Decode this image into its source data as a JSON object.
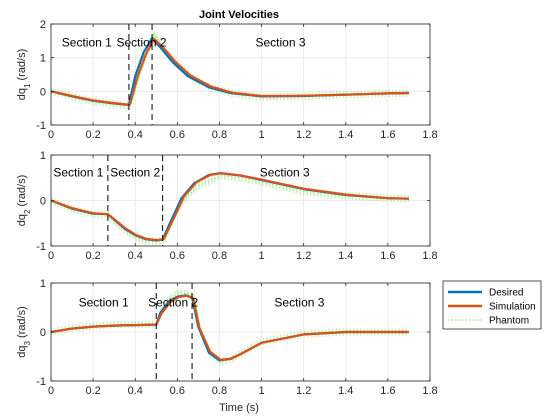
{
  "figure": {
    "title": "Joint Velocities",
    "xlabel": "Time (s)"
  },
  "legend": {
    "entries": [
      {
        "name": "Desired",
        "color": "#0072bd",
        "style": "solid"
      },
      {
        "name": "Simulation",
        "color": "#d95319",
        "style": "solid"
      },
      {
        "name": "Phantom",
        "color": "#77dd55",
        "style": "dotted"
      }
    ]
  },
  "chart_data": [
    {
      "type": "line",
      "ylabel": {
        "base": "dq",
        "sub": "1",
        "unit": " (rad/s)"
      },
      "xlim": [
        0,
        1.8
      ],
      "ylim": [
        -1,
        2
      ],
      "xticks": [
        "0",
        "0.2",
        "0.4",
        "0.6",
        "0.8",
        "1",
        "1.2",
        "1.4",
        "1.6",
        "1.8"
      ],
      "yticks": [
        "-1",
        "0",
        "1",
        "2"
      ],
      "grid": true,
      "section_lines": [
        0.37,
        0.48
      ],
      "sections": [
        {
          "label": "Section 1",
          "x": 0.17,
          "y": 1.45
        },
        {
          "label": "Section 2",
          "x": 0.43,
          "y": 1.45
        },
        {
          "label": "Section 3",
          "x": 1.09,
          "y": 1.45
        }
      ],
      "series": [
        {
          "name": "Desired",
          "x": [
            0,
            0.1,
            0.2,
            0.3,
            0.36,
            0.37,
            0.4,
            0.44,
            0.48,
            0.52,
            0.58,
            0.65,
            0.75,
            0.85,
            1.0,
            1.2,
            1.4,
            1.6,
            1.7
          ],
          "values": [
            0,
            -0.15,
            -0.28,
            -0.36,
            -0.4,
            -0.4,
            0.45,
            1.15,
            1.58,
            1.3,
            0.85,
            0.45,
            0.12,
            -0.05,
            -0.15,
            -0.14,
            -0.1,
            -0.06,
            -0.05
          ]
        },
        {
          "name": "Simulation",
          "x": [
            0,
            0.1,
            0.2,
            0.3,
            0.36,
            0.375,
            0.41,
            0.45,
            0.49,
            0.53,
            0.59,
            0.66,
            0.76,
            0.86,
            1.0,
            1.2,
            1.4,
            1.6,
            1.7
          ],
          "values": [
            0,
            -0.14,
            -0.27,
            -0.35,
            -0.39,
            -0.38,
            0.42,
            1.1,
            1.55,
            1.32,
            0.88,
            0.48,
            0.14,
            -0.04,
            -0.14,
            -0.13,
            -0.1,
            -0.06,
            -0.05
          ]
        },
        {
          "name": "Phantom",
          "x": [
            0,
            0.1,
            0.2,
            0.3,
            0.36,
            0.38,
            0.42,
            0.46,
            0.49,
            0.53,
            0.59,
            0.66,
            0.76,
            0.86,
            1.0,
            1.2,
            1.4,
            1.6,
            1.7
          ],
          "values": [
            0,
            -0.16,
            -0.3,
            -0.37,
            -0.42,
            -0.35,
            0.5,
            1.2,
            1.7,
            1.3,
            0.85,
            0.45,
            0.1,
            -0.06,
            -0.17,
            -0.15,
            -0.1,
            -0.07,
            -0.05
          ]
        }
      ]
    },
    {
      "type": "line",
      "ylabel": {
        "base": "dq",
        "sub": "2",
        "unit": " (rad/s)"
      },
      "xlim": [
        0,
        1.8
      ],
      "ylim": [
        -1,
        1
      ],
      "xticks": [
        "0",
        "0.2",
        "0.4",
        "0.6",
        "0.8",
        "1",
        "1.2",
        "1.4",
        "1.6",
        "1.8"
      ],
      "yticks": [
        "-1",
        "0",
        "1"
      ],
      "grid": true,
      "section_lines": [
        0.27,
        0.53
      ],
      "sections": [
        {
          "label": "Section 1",
          "x": 0.13,
          "y": 0.62
        },
        {
          "label": "Section 2",
          "x": 0.4,
          "y": 0.62
        },
        {
          "label": "Section 3",
          "x": 1.11,
          "y": 0.62
        }
      ],
      "series": [
        {
          "name": "Desired",
          "x": [
            0,
            0.1,
            0.2,
            0.27,
            0.3,
            0.35,
            0.4,
            0.45,
            0.5,
            0.53,
            0.57,
            0.62,
            0.68,
            0.75,
            0.8,
            0.9,
            1.0,
            1.2,
            1.4,
            1.6,
            1.7
          ],
          "values": [
            0,
            -0.18,
            -0.29,
            -0.3,
            -0.42,
            -0.62,
            -0.76,
            -0.85,
            -0.88,
            -0.86,
            -0.45,
            0.05,
            0.38,
            0.56,
            0.6,
            0.55,
            0.45,
            0.25,
            0.12,
            0.05,
            0.04
          ]
        },
        {
          "name": "Simulation",
          "x": [
            0,
            0.1,
            0.2,
            0.27,
            0.3,
            0.35,
            0.4,
            0.45,
            0.5,
            0.535,
            0.58,
            0.63,
            0.69,
            0.76,
            0.81,
            0.9,
            1.0,
            1.2,
            1.4,
            1.6,
            1.7
          ],
          "values": [
            0,
            -0.17,
            -0.28,
            -0.3,
            -0.41,
            -0.6,
            -0.75,
            -0.84,
            -0.87,
            -0.85,
            -0.42,
            0.08,
            0.4,
            0.57,
            0.6,
            0.55,
            0.46,
            0.26,
            0.13,
            0.05,
            0.04
          ]
        },
        {
          "name": "Phantom",
          "x": [
            0,
            0.1,
            0.2,
            0.27,
            0.3,
            0.35,
            0.4,
            0.45,
            0.5,
            0.54,
            0.58,
            0.63,
            0.69,
            0.76,
            0.81,
            0.9,
            1.0,
            1.2,
            1.4,
            1.6,
            1.7
          ],
          "values": [
            0,
            -0.2,
            -0.3,
            -0.32,
            -0.45,
            -0.65,
            -0.8,
            -0.9,
            -0.9,
            -0.85,
            -0.4,
            0.0,
            0.3,
            0.45,
            0.55,
            0.5,
            0.4,
            0.2,
            0.1,
            0.05,
            0.04
          ]
        }
      ]
    },
    {
      "type": "line",
      "ylabel": {
        "base": "dq",
        "sub": "3",
        "unit": " (rad/s)"
      },
      "xlim": [
        0,
        1.8
      ],
      "ylim": [
        -1,
        1
      ],
      "xticks": [
        "0",
        "0.2",
        "0.4",
        "0.6",
        "0.8",
        "1",
        "1.2",
        "1.4",
        "1.6",
        "1.8"
      ],
      "yticks": [
        "-1",
        "0",
        "1"
      ],
      "grid": true,
      "section_lines": [
        0.5,
        0.67
      ],
      "sections": [
        {
          "label": "Section 1",
          "x": 0.25,
          "y": 0.6
        },
        {
          "label": "Section 2",
          "x": 0.58,
          "y": 0.6
        },
        {
          "label": "Section 3",
          "x": 1.18,
          "y": 0.6
        }
      ],
      "series": [
        {
          "name": "Desired",
          "x": [
            0,
            0.1,
            0.2,
            0.3,
            0.4,
            0.5,
            0.52,
            0.56,
            0.6,
            0.64,
            0.67,
            0.7,
            0.75,
            0.8,
            0.85,
            0.9,
            1.0,
            1.2,
            1.4,
            1.6,
            1.7
          ],
          "values": [
            0,
            0.07,
            0.11,
            0.13,
            0.14,
            0.15,
            0.4,
            0.62,
            0.72,
            0.75,
            0.7,
            0.1,
            -0.42,
            -0.58,
            -0.55,
            -0.45,
            -0.22,
            -0.05,
            0.0,
            0.0,
            0.0
          ]
        },
        {
          "name": "Simulation",
          "x": [
            0,
            0.1,
            0.2,
            0.3,
            0.4,
            0.5,
            0.525,
            0.565,
            0.605,
            0.645,
            0.675,
            0.705,
            0.755,
            0.805,
            0.855,
            0.9,
            1.0,
            1.2,
            1.4,
            1.6,
            1.7
          ],
          "values": [
            0,
            0.07,
            0.11,
            0.13,
            0.14,
            0.15,
            0.38,
            0.6,
            0.71,
            0.74,
            0.68,
            0.08,
            -0.4,
            -0.57,
            -0.55,
            -0.45,
            -0.22,
            -0.05,
            0.0,
            0.0,
            0.0
          ]
        },
        {
          "name": "Phantom",
          "x": [
            0,
            0.1,
            0.2,
            0.3,
            0.4,
            0.5,
            0.53,
            0.57,
            0.61,
            0.65,
            0.68,
            0.71,
            0.76,
            0.81,
            0.86,
            0.9,
            1.0,
            1.2,
            1.4,
            1.6,
            1.7
          ],
          "values": [
            0,
            0.08,
            0.12,
            0.15,
            0.15,
            0.16,
            0.45,
            0.7,
            0.8,
            0.78,
            0.7,
            0.05,
            -0.45,
            -0.6,
            -0.55,
            -0.44,
            -0.2,
            -0.04,
            0.0,
            0.0,
            0.0
          ]
        }
      ]
    }
  ]
}
